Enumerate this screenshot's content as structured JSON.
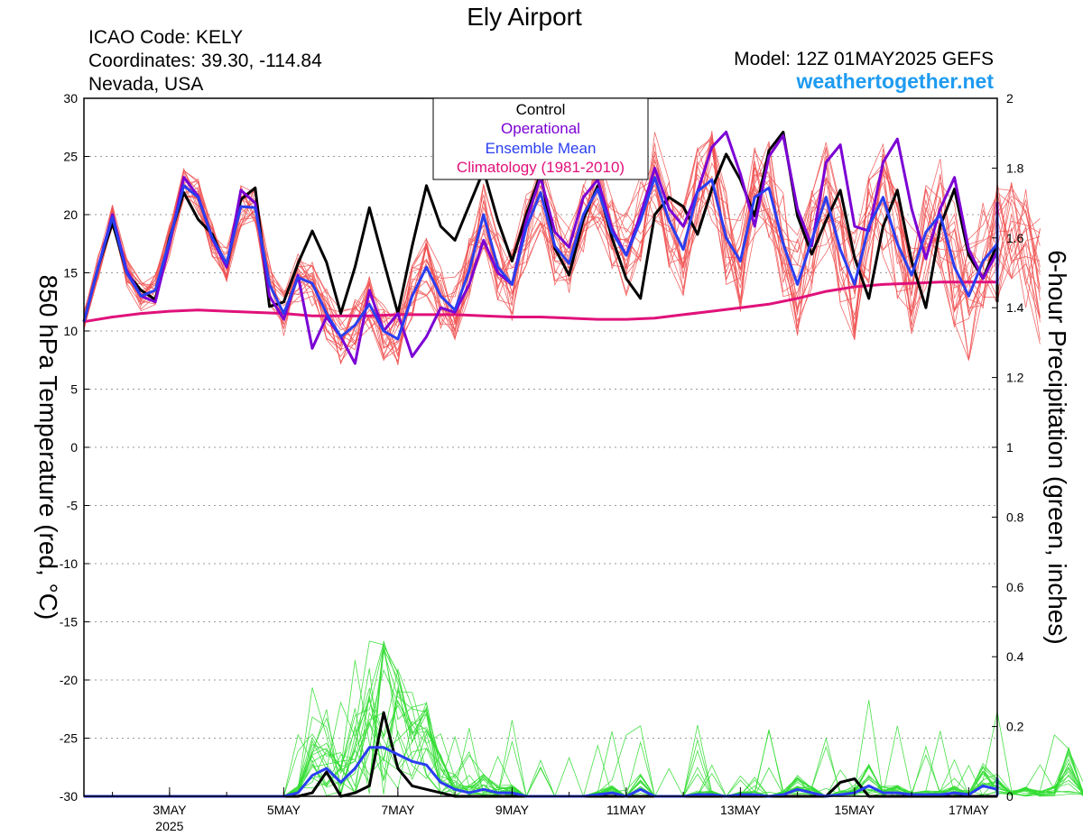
{
  "header": {
    "title": "Ely Airport",
    "icao": "ICAO Code: KELY",
    "coords": "Coordinates: 39.30, -114.84",
    "region": "Nevada, USA",
    "model": "Model: 12Z 01MAY2025 GEFS",
    "site": "weathertogether.net"
  },
  "colors": {
    "control": "#000000",
    "operational": "#7b00d4",
    "ensemble_mean": "#2a3ef0",
    "climatology": "#e0117a",
    "members_temp": "#f05050",
    "members_precip": "#33dd33",
    "site": "#1e9bf0"
  },
  "chart_data": {
    "type": "line",
    "title": "Ely Airport",
    "x_start": "2025-05-01T12Z",
    "x_end": "2025-05-17T12Z",
    "x_ticks": [
      {
        "label": "3MAY",
        "sub": "2025",
        "x": "2025-05-03"
      },
      {
        "label": "5MAY",
        "x": "2025-05-05"
      },
      {
        "label": "7MAY",
        "x": "2025-05-07"
      },
      {
        "label": "9MAY",
        "x": "2025-05-09"
      },
      {
        "label": "11MAY",
        "x": "2025-05-11"
      },
      {
        "label": "13MAY",
        "x": "2025-05-13"
      },
      {
        "label": "15MAY",
        "x": "2025-05-15"
      },
      {
        "label": "17MAY",
        "x": "2025-05-17"
      }
    ],
    "y_left": {
      "label": "850 hPa Temperature (red, °C)",
      "min": -30,
      "max": 30,
      "ticks": [
        "30",
        "25",
        "20",
        "15",
        "10",
        "5",
        "0",
        "-5",
        "-10",
        "-15",
        "-20",
        "-25",
        "-30"
      ]
    },
    "y_right": {
      "label": "6-hour Precipitation (green, inches)",
      "min": 0,
      "max": 2,
      "ticks": [
        "2",
        "1.8",
        "1.6",
        "1.4",
        "1.2",
        "1",
        "0.8",
        "0.6",
        "0.4",
        "0.2",
        "0"
      ]
    },
    "legend": {
      "position": "top-center",
      "entries": [
        "Control",
        "Operational",
        "Ensemble Mean",
        "Climatology (1981-2010)"
      ]
    },
    "grid": true,
    "series": [
      {
        "name": "Control",
        "axis": "left",
        "values": [
          10.8,
          15.5,
          19.3,
          15.0,
          13.5,
          12.7,
          18.0,
          21.9,
          19.6,
          18.3,
          15.5,
          21.3,
          22.3,
          12.1,
          12.5,
          15.8,
          18.6,
          15.9,
          11.5,
          15.5,
          20.6,
          16.0,
          11.5,
          17.3,
          22.5,
          19.0,
          17.8,
          20.8,
          23.8,
          19.5,
          16.0,
          20.0,
          23.5,
          17.1,
          14.8,
          19.6,
          22.5,
          18.0,
          14.5,
          12.8,
          20.0,
          21.5,
          20.7,
          18.3,
          22.2,
          25.2,
          23.0,
          19.9,
          25.5,
          27.1,
          19.9,
          16.6,
          19.5,
          22.1,
          16.3,
          12.8,
          19.0,
          22.1,
          16.0,
          12.0,
          19.0,
          22.2,
          16.5,
          14.5,
          17.5,
          20.5,
          15.0,
          12.5
        ]
      },
      {
        "name": "Operational",
        "axis": "left",
        "values": [
          10.8,
          15.5,
          20.0,
          15.2,
          13.0,
          12.5,
          17.5,
          23.2,
          21.6,
          17.9,
          15.5,
          22.1,
          21.0,
          13.0,
          11.0,
          14.8,
          8.5,
          11.2,
          9.5,
          7.2,
          13.5,
          10.0,
          11.5,
          7.8,
          9.5,
          12.0,
          11.6,
          14.0,
          17.8,
          15.0,
          14.0,
          19.5,
          23.2,
          18.5,
          17.2,
          21.5,
          23.0,
          18.8,
          16.5,
          20.0,
          24.0,
          20.5,
          19.0,
          22.0,
          25.8,
          27.1,
          23.5,
          19.0,
          25.0,
          26.8,
          20.5,
          17.3,
          24.5,
          26.0,
          19.0,
          18.6,
          24.5,
          26.5,
          20.5,
          16.2,
          20.5,
          23.2,
          17.0,
          14.5,
          16.8,
          21.0,
          17.0,
          14.5
        ]
      },
      {
        "name": "Ensemble Mean",
        "axis": "left",
        "values": [
          10.8,
          15.5,
          19.8,
          15.0,
          13.0,
          13.5,
          17.8,
          22.5,
          21.5,
          18.0,
          15.8,
          20.7,
          20.6,
          14.0,
          11.5,
          14.6,
          14.1,
          11.5,
          9.5,
          10.5,
          12.3,
          10.0,
          9.3,
          13.0,
          15.5,
          13.0,
          11.8,
          15.2,
          20.0,
          15.5,
          14.0,
          18.9,
          21.9,
          17.3,
          15.8,
          20.0,
          22.2,
          18.5,
          16.5,
          19.5,
          23.2,
          19.5,
          17.0,
          22.0,
          23.0,
          18.0,
          16.0,
          21.5,
          22.3,
          17.5,
          14.0,
          17.8,
          21.5,
          17.0,
          14.0,
          19.0,
          21.5,
          17.5,
          14.8,
          18.5,
          20.0,
          15.5,
          13.0,
          16.0,
          17.5,
          20.0,
          16.8,
          14.0
        ]
      },
      {
        "name": "Climatology (1981-2010)",
        "axis": "left",
        "values": [
          10.8,
          11.2,
          11.5,
          11.7,
          11.8,
          11.7,
          11.6,
          11.5,
          11.3,
          11.3,
          11.3,
          11.4,
          11.4,
          11.4,
          11.3,
          11.2,
          11.2,
          11.1,
          11.0,
          11.0,
          11.1,
          11.4,
          11.7,
          12.0,
          12.3,
          12.8,
          13.4,
          13.8,
          14.0,
          14.1,
          14.2,
          14.2,
          14.2,
          14.4
        ]
      },
      {
        "name": "Control precip",
        "axis": "right",
        "values": [
          0,
          0,
          0,
          0,
          0,
          0,
          0,
          0,
          0,
          0,
          0,
          0,
          0,
          0,
          0,
          0,
          0.01,
          0.07,
          0,
          0.01,
          0.03,
          0.24,
          0.08,
          0.03,
          0.02,
          0.01,
          0,
          0,
          0,
          0,
          0,
          0,
          0,
          0,
          0,
          0,
          0,
          0,
          0,
          0,
          0,
          0,
          0,
          0,
          0,
          0,
          0,
          0,
          0,
          0,
          0,
          0,
          0,
          0.04,
          0.05,
          0,
          0,
          0,
          0,
          0,
          0,
          0,
          0,
          0,
          0,
          0,
          0,
          0
        ]
      },
      {
        "name": "Ensemble Mean precip",
        "axis": "right",
        "values": [
          0,
          0,
          0,
          0,
          0,
          0,
          0,
          0,
          0,
          0,
          0,
          0,
          0,
          0,
          0,
          0.01,
          0.06,
          0.08,
          0.04,
          0.08,
          0.14,
          0.14,
          0.12,
          0.1,
          0.09,
          0.04,
          0.02,
          0.01,
          0.02,
          0.01,
          0.01,
          0,
          0,
          0,
          0,
          0,
          0.005,
          0.01,
          0,
          0.02,
          0,
          0,
          0,
          0.005,
          0.005,
          0,
          0.005,
          0.005,
          0,
          0.005,
          0.02,
          0.01,
          0,
          0.005,
          0.01,
          0.03,
          0.01,
          0.01,
          0.005,
          0.005,
          0.005,
          0.01,
          0.005,
          0.03,
          0.02,
          0.005,
          0.01,
          0.005,
          0.01,
          0.05,
          0.005
        ]
      }
    ]
  }
}
